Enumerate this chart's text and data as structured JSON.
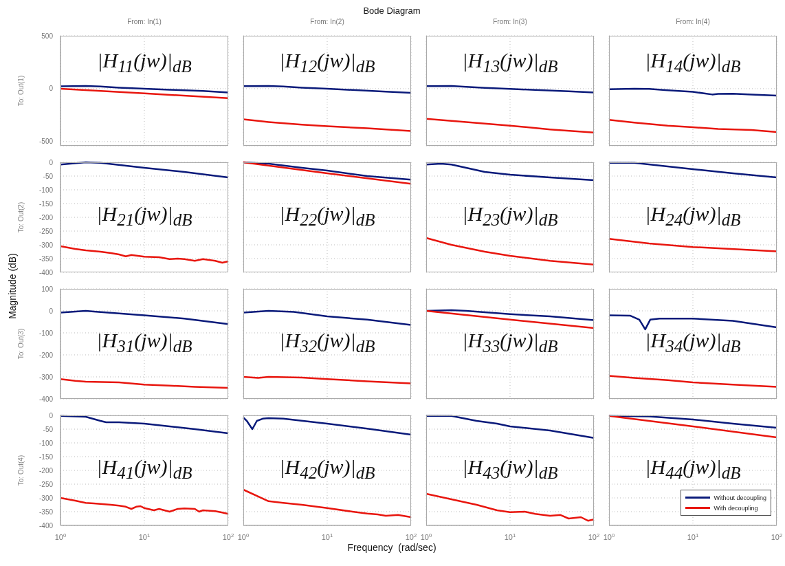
{
  "chart_data": [
    {
      "type": "line",
      "title": "From: In(1)",
      "ylabel": "To: Out(1)",
      "annotations": [
        "|H$_{11}$(jw)|$_{dB}$"
      ],
      "xlim": [
        1,
        100
      ],
      "xticks": [
        1,
        10,
        100
      ],
      "log": "x",
      "ylim": [
        -540,
        500
      ],
      "yticks": [
        -500,
        0,
        500
      ],
      "grid": true,
      "tick_labels": "y",
      "series": [
        {
          "color": "#0a1a7a",
          "x": [
            1,
            2,
            3,
            5,
            10,
            20,
            50,
            100
          ],
          "values": [
            22,
            25,
            20,
            10,
            0,
            -10,
            -22,
            -36
          ]
        },
        {
          "color": "#e8160e",
          "x": [
            1,
            10,
            100
          ],
          "values": [
            0,
            -45,
            -90
          ]
        }
      ]
    },
    {
      "type": "line",
      "title": "From: In(2)",
      "annotations": [
        "|H$_{12}$(jw)|$_{dB}$"
      ],
      "xlim": [
        1,
        100
      ],
      "xticks": [
        1,
        10,
        100
      ],
      "log": "x",
      "ylim": [
        -540,
        500
      ],
      "yticks": [
        -500,
        0,
        500
      ],
      "grid": true,
      "tick_labels": false,
      "series": [
        {
          "color": "#0a1a7a",
          "x": [
            1,
            2,
            3,
            5,
            10,
            20,
            50,
            100
          ],
          "values": [
            24,
            25,
            20,
            10,
            0,
            -12,
            -28,
            -40
          ]
        },
        {
          "color": "#e8160e",
          "x": [
            1,
            1.5,
            2,
            5,
            10,
            30,
            100
          ],
          "values": [
            -290,
            -305,
            -315,
            -340,
            -355,
            -375,
            -400
          ]
        }
      ]
    },
    {
      "type": "line",
      "title": "From: In(3)",
      "annotations": [
        "|H$_{13}$(jw)|$_{dB}$"
      ],
      "xlim": [
        1,
        100
      ],
      "xticks": [
        1,
        10,
        100
      ],
      "log": "x",
      "ylim": [
        -540,
        500
      ],
      "yticks": [
        -500,
        0,
        500
      ],
      "grid": true,
      "tick_labels": false,
      "series": [
        {
          "color": "#0a1a7a",
          "x": [
            1,
            2,
            3,
            5,
            10,
            20,
            50,
            100
          ],
          "values": [
            24,
            25,
            18,
            8,
            -2,
            -12,
            -25,
            -36
          ]
        },
        {
          "color": "#e8160e",
          "x": [
            1,
            3,
            10,
            30,
            100
          ],
          "values": [
            -285,
            -315,
            -350,
            -385,
            -415
          ]
        }
      ]
    },
    {
      "type": "line",
      "title": "From: In(4)",
      "annotations": [
        "|H$_{14}$(jw)|$_{dB}$"
      ],
      "xlim": [
        1,
        100
      ],
      "xticks": [
        1,
        10,
        100
      ],
      "log": "x",
      "ylim": [
        -540,
        500
      ],
      "yticks": [
        -500,
        0,
        500
      ],
      "grid": true,
      "tick_labels": false,
      "series": [
        {
          "color": "#0a1a7a",
          "x": [
            1,
            2,
            3,
            5,
            10,
            17,
            20,
            30,
            50,
            100
          ],
          "values": [
            -5,
            0,
            -2,
            -15,
            -30,
            -55,
            -50,
            -48,
            -55,
            -65
          ]
        },
        {
          "color": "#e8160e",
          "x": [
            1,
            2,
            5,
            10,
            20,
            50,
            100
          ],
          "values": [
            -295,
            -320,
            -350,
            -365,
            -380,
            -390,
            -410
          ]
        }
      ]
    },
    {
      "type": "line",
      "ylabel": "To: Out(2)",
      "annotations": [
        "|H$_{21}$(jw)|$_{dB}$"
      ],
      "xlim": [
        1,
        100
      ],
      "xticks": [
        1,
        10,
        100
      ],
      "log": "x",
      "ylim": [
        -400,
        0
      ],
      "yticks": [
        -400,
        -350,
        -300,
        -250,
        -200,
        -150,
        -100,
        -50,
        0
      ],
      "grid": true,
      "tick_labels": "y",
      "series": [
        {
          "color": "#0a1a7a",
          "x": [
            1,
            2,
            3,
            10,
            30,
            100
          ],
          "values": [
            -8,
            0,
            -2,
            -20,
            -35,
            -55
          ]
        },
        {
          "color": "#e8160e",
          "x": [
            1,
            1.5,
            2,
            3,
            4,
            5,
            6,
            7,
            10,
            15,
            20,
            25,
            30,
            40,
            50,
            70,
            85,
            100
          ],
          "values": [
            -305,
            -315,
            -320,
            -325,
            -330,
            -335,
            -342,
            -337,
            -343,
            -345,
            -352,
            -350,
            -352,
            -358,
            -352,
            -358,
            -365,
            -360
          ]
        }
      ]
    },
    {
      "type": "line",
      "annotations": [
        "|H$_{22}$(jw)|$_{dB}$"
      ],
      "xlim": [
        1,
        100
      ],
      "xticks": [
        1,
        10,
        100
      ],
      "log": "x",
      "ylim": [
        -400,
        0
      ],
      "yticks": [
        -400,
        -350,
        -300,
        -250,
        -200,
        -150,
        -100,
        -50,
        0
      ],
      "grid": true,
      "tick_labels": false,
      "series": [
        {
          "color": "#0a1a7a",
          "x": [
            1,
            2,
            5,
            10,
            30,
            100
          ],
          "values": [
            0,
            -5,
            -20,
            -30,
            -50,
            -63
          ]
        },
        {
          "color": "#e8160e",
          "x": [
            1,
            10,
            100
          ],
          "values": [
            0,
            -40,
            -78
          ]
        }
      ]
    },
    {
      "type": "line",
      "annotations": [
        "|H$_{23}$(jw)|$_{dB}$"
      ],
      "xlim": [
        1,
        100
      ],
      "xticks": [
        1,
        10,
        100
      ],
      "log": "x",
      "ylim": [
        -400,
        0
      ],
      "yticks": [
        -400,
        -350,
        -300,
        -250,
        -200,
        -150,
        -100,
        -50,
        0
      ],
      "grid": true,
      "tick_labels": false,
      "series": [
        {
          "color": "#0a1a7a",
          "x": [
            1,
            1.5,
            2,
            3,
            5,
            10,
            30,
            100
          ],
          "values": [
            -8,
            -5,
            -8,
            -20,
            -35,
            -45,
            -55,
            -65
          ]
        },
        {
          "color": "#e8160e",
          "x": [
            1,
            2,
            5,
            10,
            30,
            100
          ],
          "values": [
            -275,
            -300,
            -325,
            -340,
            -358,
            -372
          ]
        }
      ]
    },
    {
      "type": "line",
      "annotations": [
        "|H$_{24}$(jw)|$_{dB}$"
      ],
      "xlim": [
        1,
        100
      ],
      "xticks": [
        1,
        10,
        100
      ],
      "log": "x",
      "ylim": [
        -400,
        0
      ],
      "yticks": [
        -400,
        -350,
        -300,
        -250,
        -200,
        -150,
        -100,
        -50,
        0
      ],
      "grid": true,
      "tick_labels": false,
      "series": [
        {
          "color": "#0a1a7a",
          "x": [
            1,
            2,
            5,
            10,
            30,
            100
          ],
          "values": [
            -2,
            -2,
            -15,
            -25,
            -40,
            -55
          ]
        },
        {
          "color": "#e8160e",
          "x": [
            1,
            3,
            10,
            100
          ],
          "values": [
            -278,
            -295,
            -308,
            -324
          ]
        }
      ]
    },
    {
      "type": "line",
      "ylabel": "To: Out(3)",
      "annotations": [
        "|H$_{31}$(jw)|$_{dB}$"
      ],
      "xlim": [
        1,
        100
      ],
      "xticks": [
        1,
        10,
        100
      ],
      "log": "x",
      "ylim": [
        -400,
        100
      ],
      "yticks": [
        -400,
        -300,
        -200,
        -100,
        0,
        100
      ],
      "grid": true,
      "tick_labels": "y",
      "series": [
        {
          "color": "#0a1a7a",
          "x": [
            1,
            2,
            2.5,
            10,
            30,
            100
          ],
          "values": [
            -8,
            0,
            -3,
            -20,
            -35,
            -60
          ]
        },
        {
          "color": "#e8160e",
          "x": [
            1,
            1.5,
            2,
            5,
            10,
            20,
            40,
            100
          ],
          "values": [
            -310,
            -318,
            -322,
            -325,
            -335,
            -340,
            -345,
            -350
          ]
        }
      ]
    },
    {
      "type": "line",
      "annotations": [
        "|H$_{32}$(jw)|$_{dB}$"
      ],
      "xlim": [
        1,
        100
      ],
      "xticks": [
        1,
        10,
        100
      ],
      "log": "x",
      "ylim": [
        -400,
        100
      ],
      "yticks": [
        -400,
        -300,
        -200,
        -100,
        0,
        100
      ],
      "grid": true,
      "tick_labels": false,
      "series": [
        {
          "color": "#0a1a7a",
          "x": [
            1,
            2,
            4,
            10,
            30,
            100
          ],
          "values": [
            -8,
            0,
            -5,
            -25,
            -40,
            -64
          ]
        },
        {
          "color": "#e8160e",
          "x": [
            1,
            1.5,
            2,
            5,
            10,
            30,
            100
          ],
          "values": [
            -300,
            -305,
            -300,
            -303,
            -310,
            -320,
            -330
          ]
        }
      ]
    },
    {
      "type": "line",
      "annotations": [
        "|H$_{33}$(jw)|$_{dB}$"
      ],
      "xlim": [
        1,
        100
      ],
      "xticks": [
        1,
        10,
        100
      ],
      "log": "x",
      "ylim": [
        -400,
        100
      ],
      "yticks": [
        -400,
        -300,
        -200,
        -100,
        0,
        100
      ],
      "grid": true,
      "tick_labels": false,
      "series": [
        {
          "color": "#0a1a7a",
          "x": [
            1,
            2,
            3,
            10,
            30,
            100
          ],
          "values": [
            0,
            3,
            0,
            -15,
            -25,
            -42
          ]
        },
        {
          "color": "#e8160e",
          "x": [
            1,
            10,
            100
          ],
          "values": [
            0,
            -40,
            -78
          ]
        }
      ]
    },
    {
      "type": "line",
      "annotations": [
        "|H$_{34}$(jw)|$_{dB}$"
      ],
      "xlim": [
        1,
        100
      ],
      "xticks": [
        1,
        10,
        100
      ],
      "log": "x",
      "ylim": [
        -400,
        100
      ],
      "yticks": [
        -400,
        -300,
        -200,
        -100,
        0,
        100
      ],
      "grid": true,
      "tick_labels": false,
      "series": [
        {
          "color": "#0a1a7a",
          "x": [
            1,
            1.8,
            2.3,
            2.7,
            3.1,
            4,
            10,
            30,
            100
          ],
          "values": [
            -20,
            -22,
            -40,
            -84,
            -40,
            -35,
            -35,
            -45,
            -75
          ]
        },
        {
          "color": "#e8160e",
          "x": [
            1,
            2,
            5,
            10,
            30,
            100
          ],
          "values": [
            -295,
            -305,
            -315,
            -325,
            -335,
            -345
          ]
        }
      ]
    },
    {
      "type": "line",
      "ylabel": "To: Out(4)",
      "annotations": [
        "|H$_{41}$(jw)|$_{dB}$"
      ],
      "xlim": [
        1,
        100
      ],
      "xticks": [
        {
          "value": 1,
          "label": "10$^{0}$"
        },
        {
          "value": 10,
          "label": "10$^{1}$"
        },
        {
          "value": 100,
          "label": "10$^{2}$"
        }
      ],
      "log": "x",
      "ylim": [
        -400,
        0
      ],
      "yticks": [
        -400,
        -350,
        -300,
        -250,
        -200,
        -150,
        -100,
        -50,
        0
      ],
      "grid": true,
      "series": [
        {
          "color": "#0a1a7a",
          "x": [
            1,
            2,
            3,
            3.5,
            5,
            10,
            20,
            40,
            100
          ],
          "values": [
            -2,
            -5,
            -20,
            -25,
            -25,
            -30,
            -40,
            -50,
            -65
          ]
        },
        {
          "color": "#e8160e",
          "x": [
            1,
            1.5,
            2,
            2.5,
            3,
            4,
            5,
            6,
            7,
            8,
            9,
            10,
            13,
            15,
            20,
            25,
            30,
            40,
            45,
            50,
            70,
            85,
            100
          ],
          "values": [
            -300,
            -310,
            -318,
            -320,
            -322,
            -325,
            -328,
            -332,
            -340,
            -332,
            -330,
            -337,
            -345,
            -340,
            -350,
            -340,
            -338,
            -340,
            -350,
            -345,
            -348,
            -353,
            -358
          ]
        }
      ]
    },
    {
      "type": "line",
      "annotations": [
        "|H$_{42}$(jw)|$_{dB}$"
      ],
      "xlim": [
        1,
        100
      ],
      "xticks": [
        {
          "value": 1,
          "label": "10$^{0}$"
        },
        {
          "value": 10,
          "label": "10$^{1}$"
        },
        {
          "value": 100,
          "label": "10$^{2}$"
        }
      ],
      "log": "x",
      "ylim": [
        -400,
        0
      ],
      "yticks": [
        -400,
        -350,
        -300,
        -250,
        -200,
        -150,
        -100,
        -50,
        0
      ],
      "grid": true,
      "tick_labels": "x",
      "series": [
        {
          "color": "#0a1a7a",
          "x": [
            1,
            1.1,
            1.28,
            1.45,
            1.7,
            2,
            3,
            10,
            30,
            100
          ],
          "values": [
            -8,
            -20,
            -50,
            -20,
            -12,
            -10,
            -12,
            -30,
            -48,
            -70
          ]
        },
        {
          "color": "#e8160e",
          "x": [
            1,
            2,
            3,
            5,
            10,
            20,
            30,
            40,
            50,
            70,
            100
          ],
          "values": [
            -270,
            -312,
            -318,
            -325,
            -337,
            -350,
            -357,
            -360,
            -365,
            -362,
            -370
          ]
        }
      ]
    },
    {
      "type": "line",
      "annotations": [
        "|H$_{43}$(jw)|$_{dB}$"
      ],
      "xlim": [
        1,
        100
      ],
      "xticks": [
        {
          "value": 1,
          "label": "10$^{0}$"
        },
        {
          "value": 10,
          "label": "10$^{1}$"
        },
        {
          "value": 100,
          "label": "10$^{2}$"
        }
      ],
      "log": "x",
      "ylim": [
        -400,
        0
      ],
      "yticks": [
        -400,
        -350,
        -300,
        -250,
        -200,
        -150,
        -100,
        -50,
        0
      ],
      "grid": true,
      "tick_labels": "x",
      "series": [
        {
          "color": "#0a1a7a",
          "x": [
            1,
            2,
            4,
            7,
            10,
            30,
            100
          ],
          "values": [
            -2,
            -2,
            -20,
            -30,
            -40,
            -55,
            -82
          ]
        },
        {
          "color": "#e8160e",
          "x": [
            1,
            2,
            4,
            7,
            10,
            15,
            20,
            30,
            40,
            50,
            70,
            85,
            100
          ],
          "values": [
            -285,
            -305,
            -325,
            -345,
            -352,
            -350,
            -358,
            -365,
            -362,
            -375,
            -370,
            -383,
            -378
          ]
        }
      ]
    },
    {
      "type": "line",
      "annotations": [
        "|H$_{44}$(jw)|$_{dB}$"
      ],
      "xlim": [
        1,
        100
      ],
      "xticks": [
        {
          "value": 1,
          "label": "10$^{0}$"
        },
        {
          "value": 10,
          "label": "10$^{1}$"
        },
        {
          "value": 100,
          "label": "10$^{2}$"
        }
      ],
      "log": "x",
      "ylim": [
        -400,
        0
      ],
      "yticks": [
        -400,
        -350,
        -300,
        -250,
        -200,
        -150,
        -100,
        -50,
        0
      ],
      "grid": true,
      "tick_labels": "x",
      "legend": "bottom right",
      "series": [
        {
          "name": "Without decoupling",
          "color": "#0a1a7a",
          "x": [
            1,
            3,
            10,
            30,
            100
          ],
          "values": [
            -2,
            -4,
            -15,
            -30,
            -45
          ]
        },
        {
          "name": "With decoupling",
          "color": "#e8160e",
          "x": [
            1,
            10,
            100
          ],
          "values": [
            -2,
            -40,
            -80
          ]
        }
      ]
    },
    {
      "type": "other",
      "title": "Bode Diagram",
      "xlabel": "Frequency  (rad/sec)",
      "ylabel": "Magnitude (dB)"
    }
  ]
}
